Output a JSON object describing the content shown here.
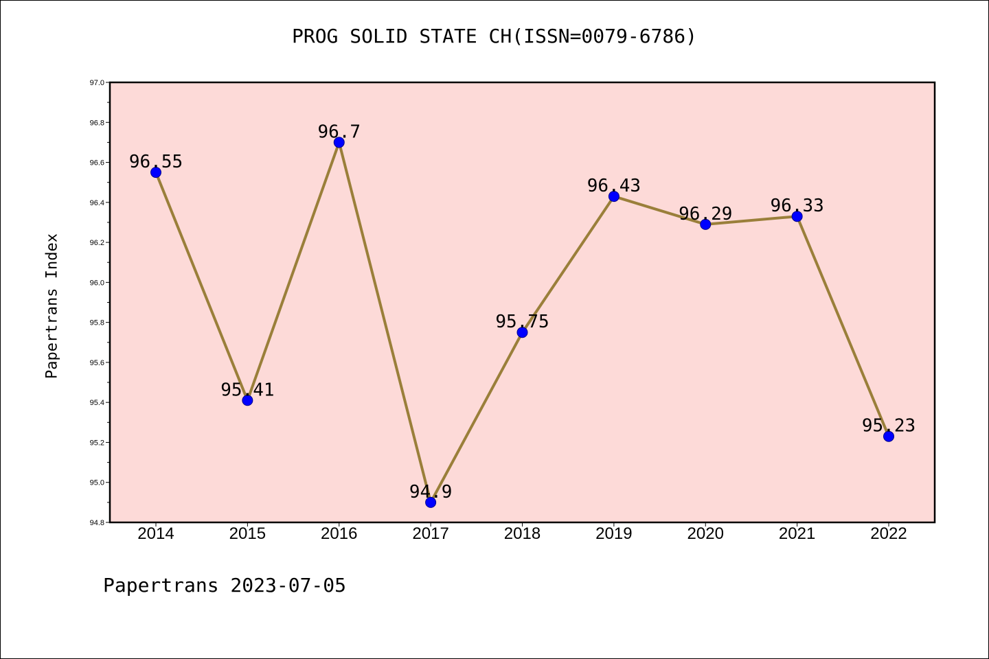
{
  "title": "PROG SOLID STATE CH(ISSN=0079-6786)",
  "footer": "Papertrans 2023-07-05",
  "colors": {
    "plot_background": "#fddad8",
    "line": "#9a7f3a",
    "marker": "#0000ff"
  },
  "chart_data": {
    "type": "line",
    "title": "PROG SOLID STATE CH(ISSN=0079-6786)",
    "xlabel": "",
    "ylabel": "Papertrans Index",
    "x": [
      "2014",
      "2015",
      "2016",
      "2017",
      "2018",
      "2019",
      "2020",
      "2021",
      "2022"
    ],
    "series": [
      {
        "values": [
          96.55,
          95.41,
          96.7,
          94.9,
          95.75,
          96.43,
          96.29,
          96.33,
          95.23
        ],
        "labels": [
          "96.55",
          "95.41",
          "96.7",
          "94.9",
          "95.75",
          "96.43",
          "96.29",
          "96.33",
          "95.23"
        ]
      }
    ],
    "ylim": [
      94.8,
      97.0
    ],
    "yticks": [
      "94.8",
      "95.0",
      "95.2",
      "95.4",
      "95.6",
      "95.8",
      "96.0",
      "96.2",
      "96.4",
      "96.6",
      "96.8",
      "97.0"
    ],
    "grid": false,
    "legend": "none"
  }
}
